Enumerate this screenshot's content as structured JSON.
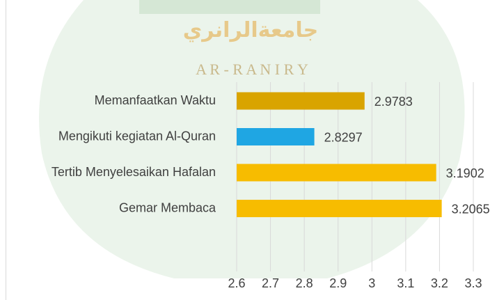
{
  "chart_data": {
    "type": "bar",
    "orientation": "horizontal",
    "categories": [
      "Memanfaatkan Waktu",
      "Mengikuti kegiatan Al-Quran",
      "Tertib Menyelesaikan Hafalan",
      "Gemar Membaca"
    ],
    "values": [
      2.9783,
      2.8297,
      3.1902,
      3.2065
    ],
    "colors": [
      "#d9a400",
      "#1fa6e3",
      "#f7bc00",
      "#f7bc00"
    ],
    "xlim": [
      2.6,
      3.3
    ],
    "xticks": [
      2.6,
      2.7,
      2.8,
      2.9,
      3,
      3.1,
      3.2,
      3.3
    ],
    "grid": true,
    "annotations": [
      "جامعةالرانري",
      "A R - R A N I R Y"
    ]
  }
}
